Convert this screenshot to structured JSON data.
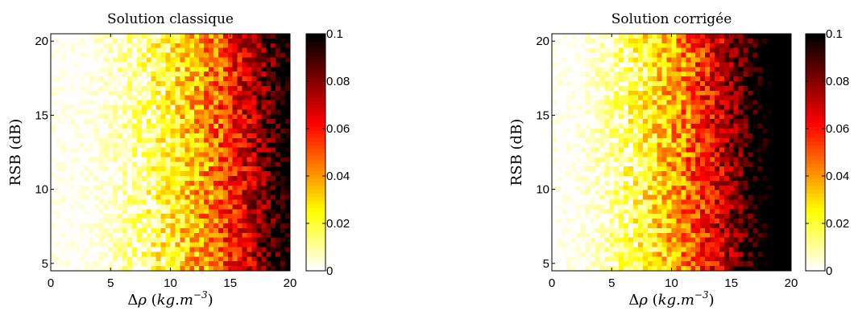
{
  "chart_data": [
    {
      "type": "heatmap",
      "title": "Solution classique",
      "xlabel": "Δρ (kg.m⁻³)",
      "xlabel_parts": {
        "prefix": "Δ",
        "rho": "ρ",
        "open": " (",
        "unit": "kg.m",
        "exp": "−3",
        "close": ")"
      },
      "ylabel": "RSB (dB)",
      "xlim": [
        0,
        20
      ],
      "ylim": [
        4.5,
        20.5
      ],
      "x_ticks": [
        "0",
        "5",
        "10",
        "15",
        "20"
      ],
      "y_ticks": [
        "5",
        "10",
        "15",
        "20"
      ],
      "colorbar": {
        "ticks": [
          "0",
          "0.02",
          "0.04",
          "0.06",
          "0.08",
          "0.1"
        ],
        "range": [
          0,
          0.1
        ],
        "colormap": "hot (reversed)"
      },
      "grid_cols": 50,
      "grid_rows": 50,
      "value_model": {
        "description": "value grows with Δρ, approx. v = 0.1 × ((Δρ−2)/17.5)^1.9 with noise",
        "x_start": 2,
        "x_full": 19.5,
        "exponent": 1.9,
        "noise": 0.018
      }
    },
    {
      "type": "heatmap",
      "title": "Solution corrigée",
      "xlabel": "Δρ (kg.m⁻³)",
      "xlabel_parts": {
        "prefix": "Δ",
        "rho": "ρ",
        "open": " (",
        "unit": "kg.m",
        "exp": "−3",
        "close": ")"
      },
      "ylabel": "RSB (dB)",
      "xlim": [
        0,
        20
      ],
      "ylim": [
        4.5,
        20.5
      ],
      "x_ticks": [
        "0",
        "5",
        "10",
        "15",
        "20"
      ],
      "y_ticks": [
        "5",
        "10",
        "15",
        "20"
      ],
      "colorbar": {
        "ticks": [
          "0",
          "0.02",
          "0.04",
          "0.06",
          "0.08",
          "0.1"
        ],
        "range": [
          0,
          0.1
        ],
        "colormap": "hot (reversed)"
      },
      "grid_cols": 50,
      "grid_rows": 50,
      "value_model": {
        "description": "value grows with Δρ, saturating near 17, approx. v = 0.1 × ((Δρ−1.5)/15.5)^1.7 with noise",
        "x_start": 1.5,
        "x_full": 17,
        "exponent": 1.7,
        "noise": 0.018
      }
    }
  ]
}
